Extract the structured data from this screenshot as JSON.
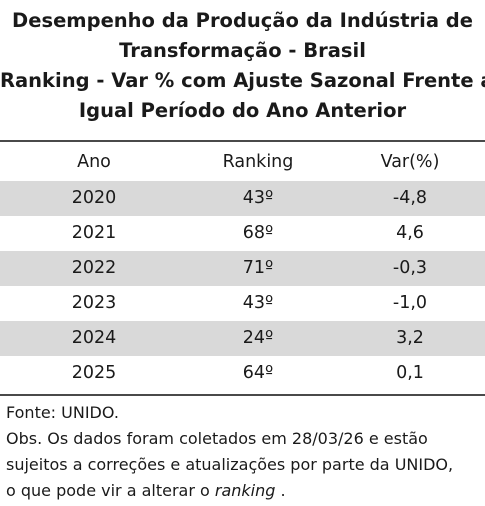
{
  "title_lines": [
    "Desempenho da Produção da Indústria de",
    "Transformação - Brasil",
    "Ranking - Var % com Ajuste Sazonal Frente a",
    "Igual Período do Ano Anterior"
  ],
  "chart_data": {
    "type": "table",
    "title": "Desempenho da Produção da Indústria de Transformação - Brasil Ranking - Var % com Ajuste Sazonal Frente a Igual Período do Ano Anterior",
    "columns": [
      "Ano",
      "Ranking",
      "Var(%)"
    ],
    "rows": [
      [
        "2020",
        "43º",
        "-4,8"
      ],
      [
        "2021",
        "68º",
        "4,6"
      ],
      [
        "2022",
        "71º",
        "-0,3"
      ],
      [
        "2023",
        "43º",
        "-1,0"
      ],
      [
        "2024",
        "24º",
        "3,2"
      ],
      [
        "2025",
        "64º",
        "0,1"
      ]
    ],
    "values": [
      -4.8,
      4.6,
      -0.3,
      -1.0,
      3.2,
      0.1
    ],
    "ranking": [
      43,
      68,
      71,
      43,
      24,
      64
    ]
  },
  "notes": {
    "source": "Fonte: UNIDO.",
    "obs_line1": "Obs. Os dados foram coletados em 28/03/26 e estão",
    "obs_line2": "sujeitos a correções e atualizações por parte da UNIDO,",
    "obs_line3_prefix": "o que pode vir a alterar o ",
    "obs_line3_italic": "ranking",
    "obs_line3_suffix": " ."
  },
  "colors": {
    "shade": "#d9d9d9",
    "rule": "#4a4a4a",
    "text": "#1a1a1a"
  }
}
